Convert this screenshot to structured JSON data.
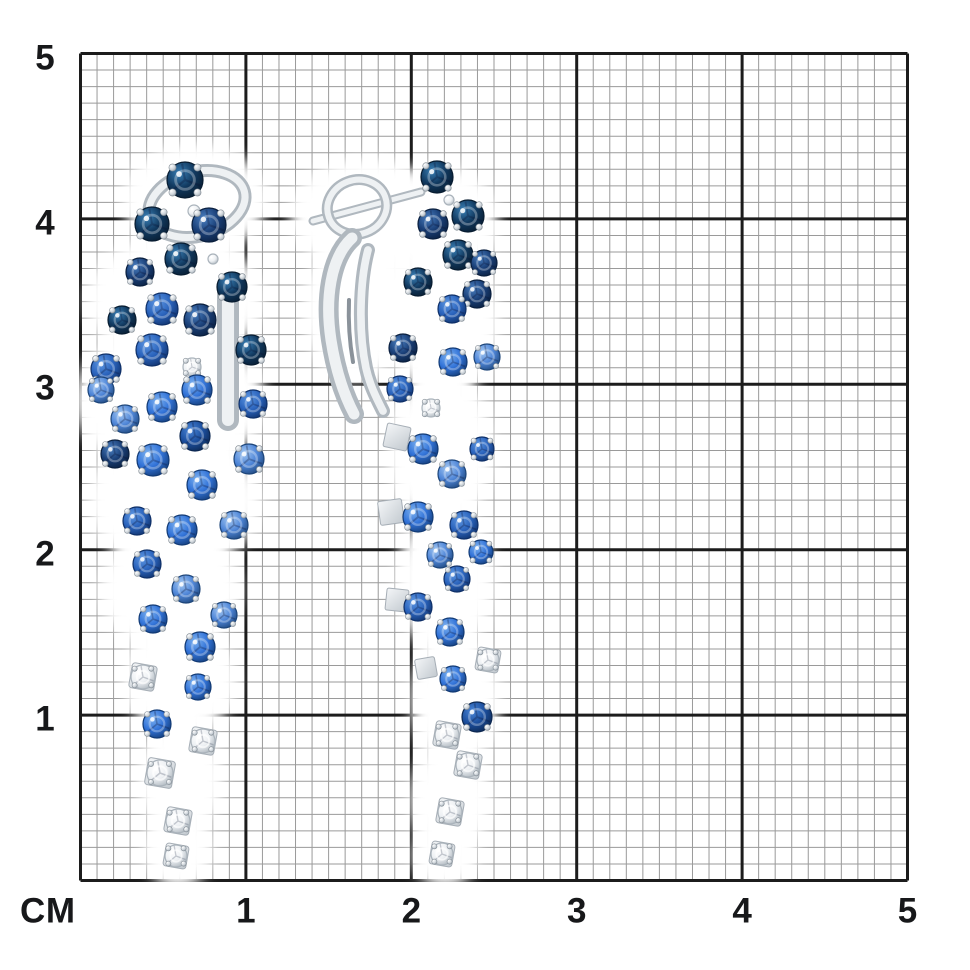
{
  "ruler": {
    "unit_label": "СМ",
    "x_tick_labels": [
      "1",
      "2",
      "3",
      "4",
      "5"
    ],
    "y_tick_labels": [
      "5",
      "4",
      "3",
      "2",
      "1"
    ],
    "range_cm": [
      0,
      5
    ],
    "minor_division_cm": 0.1
  },
  "palette": {
    "background": "#ffffff",
    "grid_minor": "#9a9a9a",
    "grid_major": "#1c1c1c",
    "label_color": "#17181a",
    "metal_edge": "#b0b8bf",
    "metal_face": "#eef1f3",
    "metal_dark": "#8a929a",
    "stone_shades": {
      "navy": {
        "hi": "#3a7fb5",
        "mid": "#11395f",
        "edge": "#081c30"
      },
      "navy2": {
        "hi": "#4a7fc0",
        "mid": "#1a3f77",
        "edge": "#0a1f3e"
      },
      "deep": {
        "hi": "#4a86d8",
        "mid": "#1c4f9e",
        "edge": "#0c2750"
      },
      "blue": {
        "hi": "#5e97e2",
        "mid": "#2a63bc",
        "edge": "#0f3068"
      },
      "bright": {
        "hi": "#7db2f0",
        "mid": "#3273d8",
        "edge": "#123a74"
      },
      "light": {
        "hi": "#a4c8f2",
        "mid": "#4f86d8",
        "edge": "#1d4579"
      },
      "white": {
        "hi": "#ffffff",
        "mid": "#eef1f4",
        "edge": "#aab3bb"
      }
    }
  },
  "subject": {
    "alt": "Pair of white-gold cascade earrings set with blue sapphires shading from dark navy at the top to light blue, ending in white diamonds, shown on a centimeter grid",
    "earrings": [
      {
        "name": "left-earring-front-view",
        "view": "front",
        "stones": [
          [
            185,
            180,
            18,
            "navy"
          ],
          [
            194,
            211,
            6,
            "white"
          ],
          [
            152,
            224,
            17,
            "navy"
          ],
          [
            209,
            225,
            17,
            "navy2"
          ],
          [
            181,
            259,
            16,
            "navy"
          ],
          [
            140,
            272,
            14,
            "navy2"
          ],
          [
            232,
            287,
            15,
            "navy"
          ],
          [
            213,
            259,
            5,
            "white"
          ],
          [
            162,
            309,
            16,
            "blue"
          ],
          [
            200,
            320,
            16,
            "navy2"
          ],
          [
            122,
            320,
            14,
            "navy"
          ],
          [
            251,
            350,
            15,
            "navy"
          ],
          [
            152,
            350,
            16,
            "blue"
          ],
          [
            106,
            369,
            15,
            "blue"
          ],
          [
            192,
            367,
            9,
            "white"
          ],
          [
            197,
            390,
            15,
            "bright"
          ],
          [
            253,
            404,
            14,
            "blue"
          ],
          [
            162,
            407,
            15,
            "bright"
          ],
          [
            125,
            419,
            14,
            "light"
          ],
          [
            101,
            390,
            13,
            "light"
          ],
          [
            195,
            436,
            15,
            "deep"
          ],
          [
            115,
            454,
            14,
            "navy2"
          ],
          [
            153,
            460,
            16,
            "bright"
          ],
          [
            249,
            459,
            15,
            "light"
          ],
          [
            202,
            485,
            15,
            "bright"
          ],
          [
            137,
            521,
            14,
            "blue"
          ],
          [
            182,
            530,
            15,
            "bright"
          ],
          [
            234,
            525,
            14,
            "light"
          ],
          [
            147,
            564,
            14,
            "blue"
          ],
          [
            186,
            589,
            14,
            "light"
          ],
          [
            153,
            619,
            14,
            "bright"
          ],
          [
            224,
            615,
            13,
            "light"
          ],
          [
            200,
            647,
            15,
            "bright"
          ],
          [
            143,
            677,
            12,
            "white"
          ],
          [
            198,
            687,
            13,
            "bright"
          ],
          [
            157,
            724,
            14,
            "bright"
          ],
          [
            203,
            741,
            12,
            "white"
          ],
          [
            160,
            773,
            13,
            "white"
          ],
          [
            178,
            821,
            12,
            "white"
          ],
          [
            176,
            856,
            11,
            "white"
          ]
        ]
      },
      {
        "name": "right-earring-side-view",
        "view": "side",
        "stones": [
          [
            437,
            177,
            16,
            "navy"
          ],
          [
            449,
            200,
            5,
            "white"
          ],
          [
            468,
            216,
            16,
            "navy"
          ],
          [
            433,
            224,
            15,
            "navy2"
          ],
          [
            458,
            255,
            15,
            "navy"
          ],
          [
            484,
            263,
            13,
            "navy2"
          ],
          [
            418,
            282,
            14,
            "navy"
          ],
          [
            477,
            294,
            14,
            "navy2"
          ],
          [
            452,
            309,
            14,
            "blue"
          ],
          [
            403,
            348,
            14,
            "navy2"
          ],
          [
            453,
            362,
            14,
            "bright"
          ],
          [
            487,
            357,
            13,
            "light"
          ],
          [
            400,
            389,
            13,
            "blue"
          ],
          [
            431,
            408,
            9,
            "white"
          ],
          [
            423,
            449,
            15,
            "bright"
          ],
          [
            452,
            474,
            14,
            "light"
          ],
          [
            482,
            449,
            12,
            "blue"
          ],
          [
            418,
            517,
            15,
            "bright"
          ],
          [
            464,
            525,
            14,
            "blue"
          ],
          [
            440,
            555,
            13,
            "light"
          ],
          [
            481,
            552,
            12,
            "bright"
          ],
          [
            457,
            579,
            13,
            "blue"
          ],
          [
            418,
            607,
            14,
            "blue"
          ],
          [
            450,
            632,
            14,
            "bright"
          ],
          [
            488,
            660,
            11,
            "white"
          ],
          [
            453,
            679,
            13,
            "bright"
          ],
          [
            477,
            717,
            15,
            "deep"
          ],
          [
            447,
            735,
            12,
            "white"
          ],
          [
            468,
            765,
            12,
            "white"
          ],
          [
            450,
            812,
            12,
            "white"
          ],
          [
            442,
            854,
            11,
            "white"
          ]
        ]
      }
    ]
  }
}
